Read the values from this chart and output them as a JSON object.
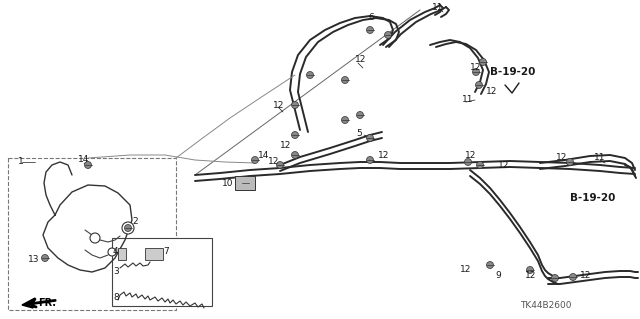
{
  "bg_color": "#ffffff",
  "diagram_code": "TK44B2600",
  "b1920_label": "B-19-20",
  "fr_label": "FR.",
  "figsize": [
    6.4,
    3.19
  ],
  "dpi": 100,
  "xlim": [
    0,
    640
  ],
  "ylim": [
    0,
    319
  ],
  "cable_color": "#2a2a2a",
  "label_color": "#1a1a1a",
  "box_color": "#555555"
}
